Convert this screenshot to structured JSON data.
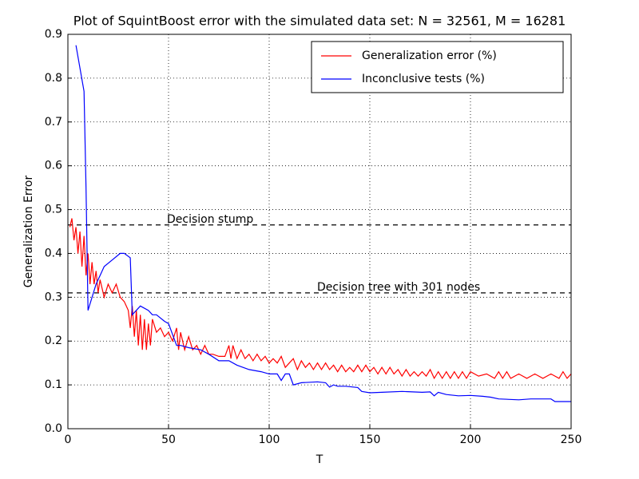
{
  "chart_data": {
    "type": "line",
    "title": "Plot of SquintBoost error with the simulated data set: N = 32561, M = 16281",
    "xlabel": "T",
    "ylabel": "Generalization Error",
    "xlim": [
      0,
      250
    ],
    "ylim": [
      0,
      0.9
    ],
    "xticks": [
      0,
      50,
      100,
      150,
      200,
      250
    ],
    "yticks": [
      {
        "value": 0,
        "label": "0.0"
      },
      0.1,
      0.2,
      0.3,
      0.4,
      0.5,
      0.6,
      0.7,
      0.8,
      0.9
    ],
    "grid": true,
    "legend": "upper right",
    "hlines": [
      {
        "value": 0.465,
        "label": "Decision stump"
      },
      {
        "value": 0.31,
        "label": "Decision tree with 301 nodes"
      }
    ],
    "series": [
      {
        "name": "Generalization error (%)",
        "color": "#ff0000",
        "x": [
          1,
          2,
          3,
          4,
          5,
          6,
          7,
          8,
          9,
          10,
          11,
          12,
          13,
          14,
          15,
          16,
          18,
          20,
          22,
          24,
          26,
          28,
          30,
          31,
          32,
          33,
          34,
          35,
          36,
          37,
          38,
          39,
          40,
          41,
          42,
          44,
          46,
          48,
          50,
          52,
          54,
          55,
          56,
          58,
          60,
          62,
          64,
          66,
          68,
          70,
          72,
          75,
          78,
          80,
          81,
          82,
          84,
          86,
          88,
          90,
          92,
          94,
          96,
          98,
          100,
          102,
          104,
          106,
          108,
          110,
          112,
          114,
          116,
          118,
          120,
          122,
          124,
          126,
          128,
          130,
          132,
          134,
          136,
          138,
          140,
          142,
          144,
          146,
          148,
          150,
          152,
          154,
          156,
          158,
          160,
          162,
          164,
          166,
          168,
          170,
          172,
          174,
          176,
          178,
          180,
          182,
          184,
          186,
          188,
          190,
          192,
          194,
          196,
          198,
          200,
          204,
          208,
          212,
          214,
          216,
          218,
          220,
          224,
          228,
          232,
          236,
          240,
          244,
          246,
          248,
          250
        ],
        "values": [
          0.46,
          0.48,
          0.43,
          0.46,
          0.4,
          0.45,
          0.37,
          0.44,
          0.35,
          0.4,
          0.33,
          0.38,
          0.33,
          0.36,
          0.31,
          0.34,
          0.3,
          0.33,
          0.31,
          0.33,
          0.3,
          0.29,
          0.27,
          0.23,
          0.28,
          0.21,
          0.27,
          0.19,
          0.26,
          0.18,
          0.25,
          0.18,
          0.24,
          0.19,
          0.25,
          0.22,
          0.23,
          0.21,
          0.22,
          0.2,
          0.23,
          0.18,
          0.22,
          0.18,
          0.21,
          0.18,
          0.19,
          0.17,
          0.19,
          0.17,
          0.17,
          0.165,
          0.165,
          0.19,
          0.16,
          0.19,
          0.16,
          0.18,
          0.16,
          0.17,
          0.155,
          0.17,
          0.155,
          0.165,
          0.15,
          0.16,
          0.15,
          0.165,
          0.14,
          0.15,
          0.16,
          0.135,
          0.155,
          0.14,
          0.15,
          0.135,
          0.15,
          0.135,
          0.15,
          0.135,
          0.145,
          0.13,
          0.145,
          0.13,
          0.14,
          0.13,
          0.145,
          0.13,
          0.145,
          0.13,
          0.14,
          0.125,
          0.14,
          0.125,
          0.14,
          0.125,
          0.135,
          0.12,
          0.135,
          0.12,
          0.13,
          0.12,
          0.13,
          0.12,
          0.135,
          0.115,
          0.13,
          0.115,
          0.13,
          0.115,
          0.13,
          0.115,
          0.13,
          0.115,
          0.13,
          0.12,
          0.125,
          0.115,
          0.13,
          0.115,
          0.13,
          0.115,
          0.125,
          0.115,
          0.125,
          0.115,
          0.125,
          0.115,
          0.13,
          0.115,
          0.125
        ]
      },
      {
        "name": "Inconclusive tests (%)",
        "color": "#0000ff",
        "x": [
          4,
          8,
          9,
          10,
          14,
          18,
          22,
          26,
          28,
          31,
          32,
          36,
          40,
          42,
          44,
          48,
          50,
          54,
          56,
          60,
          66,
          70,
          75,
          80,
          84,
          90,
          96,
          100,
          104,
          106,
          108,
          110,
          112,
          116,
          124,
          128,
          130,
          132,
          134,
          138,
          144,
          146,
          150,
          156,
          166,
          176,
          180,
          182,
          184,
          188,
          194,
          200,
          206,
          210,
          214,
          224,
          230,
          240,
          242,
          250
        ],
        "values": [
          0.875,
          0.77,
          0.55,
          0.27,
          0.33,
          0.37,
          0.385,
          0.4,
          0.4,
          0.39,
          0.26,
          0.28,
          0.27,
          0.26,
          0.26,
          0.245,
          0.24,
          0.19,
          0.19,
          0.185,
          0.18,
          0.17,
          0.155,
          0.155,
          0.145,
          0.135,
          0.13,
          0.125,
          0.125,
          0.11,
          0.125,
          0.125,
          0.1,
          0.105,
          0.107,
          0.105,
          0.095,
          0.1,
          0.097,
          0.097,
          0.094,
          0.085,
          0.082,
          0.083,
          0.085,
          0.083,
          0.084,
          0.075,
          0.083,
          0.078,
          0.075,
          0.076,
          0.074,
          0.072,
          0.068,
          0.066,
          0.068,
          0.068,
          0.062,
          0.062
        ]
      }
    ]
  }
}
